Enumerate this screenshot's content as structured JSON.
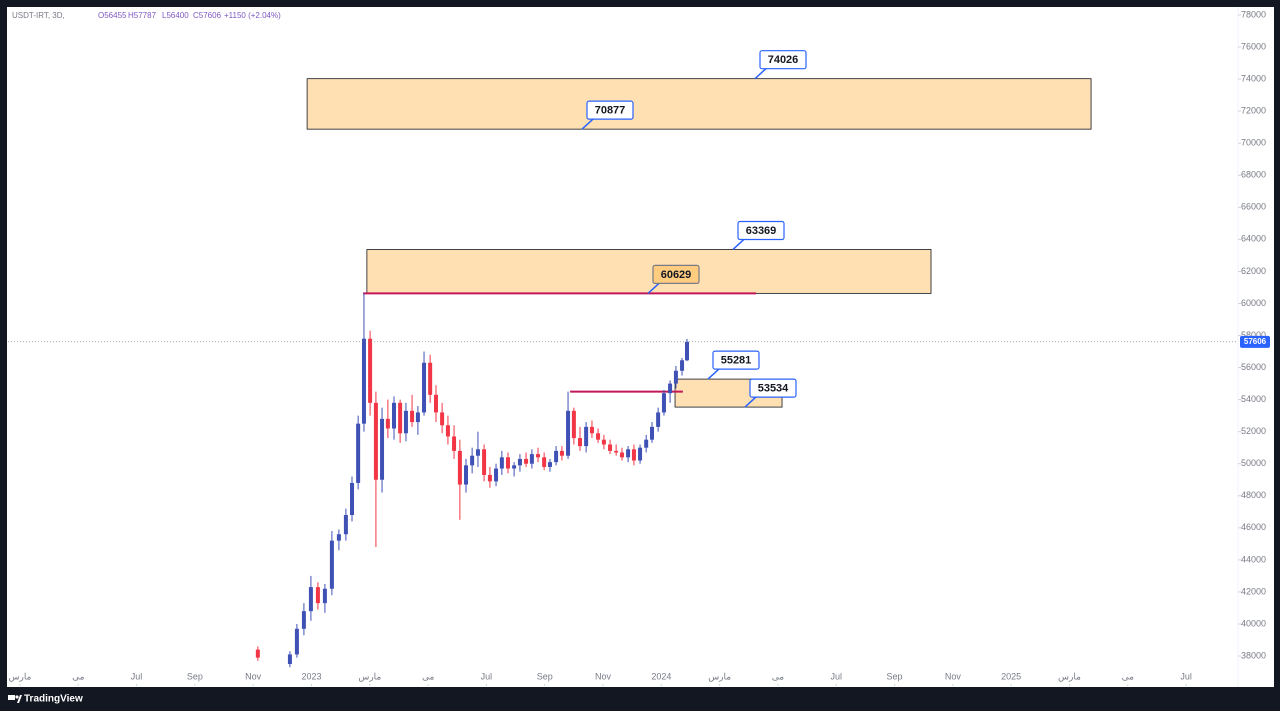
{
  "header": {
    "symbol": "USDT-IRT, 3D,",
    "open": "O56455",
    "high": "H57787",
    "low": "L56400",
    "close": "C57606",
    "change": "+1150 (+2.04%)"
  },
  "brand": "TradingView",
  "chart_data": {
    "type": "candlestick",
    "up_color": "#3f51b5",
    "down_color": "#f23645",
    "xlim": [
      -0.41,
      41.78
    ],
    "ylim": [
      36130,
      78437
    ],
    "yticks": [
      38000,
      40000,
      42000,
      44000,
      46000,
      48000,
      50000,
      52000,
      54000,
      56000,
      58000,
      60000,
      62000,
      64000,
      66000,
      68000,
      70000,
      72000,
      74000,
      76000,
      78000
    ],
    "xticks": [
      {
        "value": 0,
        "label": "مارس"
      },
      {
        "value": 2,
        "label": "می"
      },
      {
        "value": 4,
        "label": "Jul"
      },
      {
        "value": 6,
        "label": "Sep"
      },
      {
        "value": 8,
        "label": "Nov"
      },
      {
        "value": 10,
        "label": "2023"
      },
      {
        "value": 12,
        "label": "مارس"
      },
      {
        "value": 14,
        "label": "می"
      },
      {
        "value": 16,
        "label": "Jul"
      },
      {
        "value": 18,
        "label": "Sep"
      },
      {
        "value": 20,
        "label": "Nov"
      },
      {
        "value": 22,
        "label": "2024"
      },
      {
        "value": 24,
        "label": "مارس"
      },
      {
        "value": 26,
        "label": "می"
      },
      {
        "value": 28,
        "label": "Jul"
      },
      {
        "value": 30,
        "label": "Sep"
      },
      {
        "value": 32,
        "label": "Nov"
      },
      {
        "value": 34,
        "label": "2025"
      },
      {
        "value": 36,
        "label": "مارس"
      },
      {
        "value": 38,
        "label": "می"
      },
      {
        "value": 40,
        "label": "Jul"
      }
    ],
    "last_price": 57606,
    "last_price_color": "#2962ff",
    "zones": [
      {
        "x": [
          9.85,
          36.74
        ],
        "top": 74026,
        "bottom": 70877
      },
      {
        "x": [
          11.9,
          31.25
        ],
        "top": 63369,
        "bottom": 60629
      },
      {
        "x": [
          22.47,
          26.14
        ],
        "top": 55281,
        "bottom": 53534
      }
    ],
    "zone_color": "#ffe0b2",
    "levels": [
      {
        "value": 60629,
        "x": [
          11.77,
          25.25
        ]
      },
      {
        "value": 54500,
        "x": [
          18.87,
          22.74
        ]
      }
    ],
    "level_color": "#c2185b",
    "candles": [
      {
        "x": 8.16,
        "open": 38400,
        "high": 38600,
        "low": 37700,
        "close": 37900
      },
      {
        "x": 9.26,
        "open": 37500,
        "high": 38300,
        "low": 37300,
        "close": 38100
      },
      {
        "x": 9.5,
        "open": 38100,
        "high": 40000,
        "low": 37900,
        "close": 39700
      },
      {
        "x": 9.74,
        "open": 39700,
        "high": 41300,
        "low": 39300,
        "close": 40800
      },
      {
        "x": 9.98,
        "open": 40800,
        "high": 43000,
        "low": 40200,
        "close": 42300
      },
      {
        "x": 10.22,
        "open": 42300,
        "high": 42600,
        "low": 40900,
        "close": 41300
      },
      {
        "x": 10.46,
        "open": 41300,
        "high": 42500,
        "low": 40700,
        "close": 42200
      },
      {
        "x": 10.7,
        "open": 42200,
        "high": 45800,
        "low": 41800,
        "close": 45200
      },
      {
        "x": 10.94,
        "open": 45200,
        "high": 45900,
        "low": 44600,
        "close": 45600
      },
      {
        "x": 11.18,
        "open": 45600,
        "high": 47200,
        "low": 45200,
        "close": 46800
      },
      {
        "x": 11.39,
        "open": 46800,
        "high": 49200,
        "low": 46400,
        "close": 48800
      },
      {
        "x": 11.6,
        "open": 48800,
        "high": 53000,
        "low": 48400,
        "close": 52500
      },
      {
        "x": 11.8,
        "open": 52500,
        "high": 60629,
        "low": 52000,
        "close": 57800
      },
      {
        "x": 12.01,
        "open": 57800,
        "high": 58300,
        "low": 53000,
        "close": 53800
      },
      {
        "x": 12.21,
        "open": 53800,
        "high": 54500,
        "low": 44800,
        "close": 49000
      },
      {
        "x": 12.42,
        "open": 49000,
        "high": 53500,
        "low": 48200,
        "close": 52800
      },
      {
        "x": 12.62,
        "open": 52800,
        "high": 54000,
        "low": 51600,
        "close": 52200
      },
      {
        "x": 12.83,
        "open": 52200,
        "high": 54200,
        "low": 51500,
        "close": 53800
      },
      {
        "x": 13.04,
        "open": 53800,
        "high": 54000,
        "low": 51300,
        "close": 51900
      },
      {
        "x": 13.24,
        "open": 51900,
        "high": 53800,
        "low": 51400,
        "close": 53300
      },
      {
        "x": 13.45,
        "open": 53300,
        "high": 54300,
        "low": 52300,
        "close": 52600
      },
      {
        "x": 13.65,
        "open": 52600,
        "high": 53600,
        "low": 51800,
        "close": 53200
      },
      {
        "x": 13.86,
        "open": 53200,
        "high": 57000,
        "low": 53000,
        "close": 56300
      },
      {
        "x": 14.07,
        "open": 56300,
        "high": 56800,
        "low": 53800,
        "close": 54300
      },
      {
        "x": 14.27,
        "open": 54300,
        "high": 54900,
        "low": 52600,
        "close": 53200
      },
      {
        "x": 14.48,
        "open": 53200,
        "high": 53800,
        "low": 51900,
        "close": 52400
      },
      {
        "x": 14.68,
        "open": 52400,
        "high": 53000,
        "low": 51200,
        "close": 51700
      },
      {
        "x": 14.89,
        "open": 51700,
        "high": 52400,
        "low": 50300,
        "close": 50800
      },
      {
        "x": 15.09,
        "open": 50800,
        "high": 51500,
        "low": 46500,
        "close": 48700
      },
      {
        "x": 15.3,
        "open": 48700,
        "high": 50300,
        "low": 48200,
        "close": 49900
      },
      {
        "x": 15.51,
        "open": 49900,
        "high": 51000,
        "low": 49400,
        "close": 50500
      },
      {
        "x": 15.71,
        "open": 50500,
        "high": 52000,
        "low": 49800,
        "close": 50900
      },
      {
        "x": 15.92,
        "open": 50900,
        "high": 51200,
        "low": 48900,
        "close": 49300
      },
      {
        "x": 16.12,
        "open": 49300,
        "high": 49800,
        "low": 48500,
        "close": 48900
      },
      {
        "x": 16.33,
        "open": 48900,
        "high": 50000,
        "low": 48600,
        "close": 49700
      },
      {
        "x": 16.53,
        "open": 49700,
        "high": 50800,
        "low": 49300,
        "close": 50400
      },
      {
        "x": 16.74,
        "open": 50400,
        "high": 50700,
        "low": 49400,
        "close": 49700
      },
      {
        "x": 16.95,
        "open": 49700,
        "high": 50100,
        "low": 49200,
        "close": 49900
      },
      {
        "x": 17.15,
        "open": 49900,
        "high": 50600,
        "low": 49500,
        "close": 50300
      },
      {
        "x": 17.36,
        "open": 50300,
        "high": 50700,
        "low": 49800,
        "close": 50000
      },
      {
        "x": 17.56,
        "open": 50000,
        "high": 50900,
        "low": 49700,
        "close": 50600
      },
      {
        "x": 17.77,
        "open": 50600,
        "high": 51000,
        "low": 50100,
        "close": 50400
      },
      {
        "x": 17.98,
        "open": 50400,
        "high": 50700,
        "low": 49600,
        "close": 49800
      },
      {
        "x": 18.18,
        "open": 49800,
        "high": 50300,
        "low": 49500,
        "close": 50100
      },
      {
        "x": 18.39,
        "open": 50100,
        "high": 51100,
        "low": 49900,
        "close": 50800
      },
      {
        "x": 18.59,
        "open": 50800,
        "high": 51100,
        "low": 50200,
        "close": 50500
      },
      {
        "x": 18.8,
        "open": 50500,
        "high": 54500,
        "low": 50300,
        "close": 53300
      },
      {
        "x": 19.0,
        "open": 53300,
        "high": 53500,
        "low": 51200,
        "close": 51600
      },
      {
        "x": 19.21,
        "open": 51600,
        "high": 52300,
        "low": 50800,
        "close": 51100
      },
      {
        "x": 19.42,
        "open": 51100,
        "high": 52600,
        "low": 50700,
        "close": 52300
      },
      {
        "x": 19.62,
        "open": 52300,
        "high": 52700,
        "low": 51600,
        "close": 51900
      },
      {
        "x": 19.83,
        "open": 51900,
        "high": 52200,
        "low": 51300,
        "close": 51500
      },
      {
        "x": 20.03,
        "open": 51500,
        "high": 51800,
        "low": 50900,
        "close": 51200
      },
      {
        "x": 20.24,
        "open": 51200,
        "high": 51500,
        "low": 50600,
        "close": 50800
      },
      {
        "x": 20.45,
        "open": 50800,
        "high": 51200,
        "low": 50500,
        "close": 50700
      },
      {
        "x": 20.65,
        "open": 50700,
        "high": 51000,
        "low": 50200,
        "close": 50400
      },
      {
        "x": 20.86,
        "open": 50400,
        "high": 51100,
        "low": 50100,
        "close": 50900
      },
      {
        "x": 21.06,
        "open": 50900,
        "high": 51200,
        "low": 49900,
        "close": 50200
      },
      {
        "x": 21.27,
        "open": 50200,
        "high": 51200,
        "low": 50000,
        "close": 51000
      },
      {
        "x": 21.48,
        "open": 51000,
        "high": 51800,
        "low": 50700,
        "close": 51500
      },
      {
        "x": 21.68,
        "open": 51500,
        "high": 52600,
        "low": 51300,
        "close": 52300
      },
      {
        "x": 21.89,
        "open": 52300,
        "high": 53500,
        "low": 52000,
        "close": 53200
      },
      {
        "x": 22.09,
        "open": 53200,
        "high": 54600,
        "low": 53000,
        "close": 54400
      },
      {
        "x": 22.3,
        "open": 54400,
        "high": 55200,
        "low": 53800,
        "close": 55000
      },
      {
        "x": 22.5,
        "open": 55000,
        "high": 56100,
        "low": 54700,
        "close": 55800
      },
      {
        "x": 22.71,
        "open": 55800,
        "high": 56600,
        "low": 55500,
        "close": 56455
      },
      {
        "x": 22.88,
        "open": 56455,
        "high": 57787,
        "low": 56400,
        "close": 57606
      }
    ]
  }
}
